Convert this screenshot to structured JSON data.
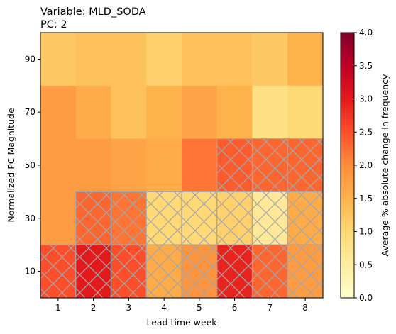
{
  "chart_data": {
    "type": "heatmap",
    "title_lines": [
      "Variable: MLD_SODA",
      "PC: 2"
    ],
    "xlabel": "Lead time week",
    "ylabel": "Normalized PC Magnitude",
    "x_categories": [
      "1",
      "2",
      "3",
      "4",
      "5",
      "6",
      "7",
      "8"
    ],
    "y_categories": [
      "90",
      "70",
      "50",
      "30",
      "10"
    ],
    "colorbar": {
      "label": "Average % absolute change in frequency",
      "min": 0.0,
      "max": 4.0,
      "ticks": [
        "0.0",
        "0.5",
        "1.0",
        "1.5",
        "2.0",
        "2.5",
        "3.0",
        "3.5",
        "4.0"
      ],
      "colormap": "YlOrRd"
    },
    "values": [
      [
        1.2,
        1.3,
        1.3,
        1.1,
        1.3,
        1.3,
        1.2,
        1.5
      ],
      [
        1.8,
        1.6,
        1.3,
        1.5,
        1.7,
        1.5,
        0.8,
        1.0
      ],
      [
        1.8,
        1.8,
        1.7,
        1.6,
        2.2,
        2.4,
        2.3,
        2.3
      ],
      [
        1.8,
        2.3,
        2.2,
        1.0,
        1.0,
        1.1,
        0.6,
        1.6
      ],
      [
        2.5,
        3.0,
        2.5,
        1.6,
        1.9,
        2.9,
        2.3,
        1.8
      ]
    ],
    "hatched": [
      [
        false,
        false,
        false,
        false,
        false,
        false,
        false,
        false
      ],
      [
        false,
        false,
        false,
        false,
        false,
        false,
        false,
        false
      ],
      [
        false,
        false,
        false,
        false,
        false,
        true,
        true,
        true
      ],
      [
        false,
        true,
        true,
        true,
        true,
        true,
        true,
        true
      ],
      [
        true,
        true,
        true,
        true,
        true,
        true,
        true,
        true
      ]
    ],
    "hatch_color": "#a6a6a6"
  }
}
